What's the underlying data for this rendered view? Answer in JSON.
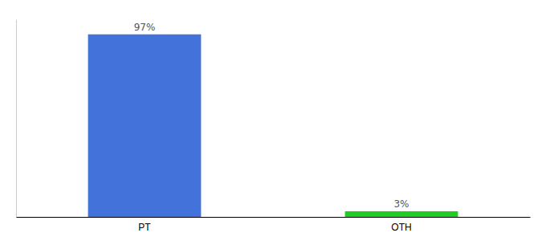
{
  "chart_data": {
    "type": "bar",
    "categories": [
      "PT",
      "OTH"
    ],
    "values": [
      97,
      3
    ],
    "colors": [
      "#4472db",
      "#22cc22"
    ],
    "data_labels": true,
    "value_labels": [
      "97%",
      "3%"
    ],
    "ylim": [
      0,
      105
    ],
    "tick_labels": "x",
    "grid": false
  }
}
